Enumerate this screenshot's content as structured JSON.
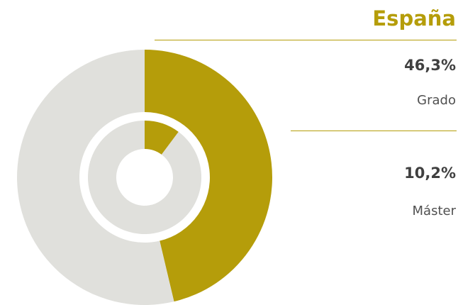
{
  "title": "España",
  "colors": {
    "accent": "#b59d0a",
    "remainder": "#e0e0dc",
    "value_text": "#404040",
    "label_text": "#505050"
  },
  "stats": [
    {
      "value": "46,3%",
      "label": "Grado"
    },
    {
      "value": "10,2%",
      "label": "Máster"
    }
  ],
  "chart_data": {
    "type": "pie",
    "variant": "nested-donut",
    "title": "España",
    "series": [
      {
        "name": "Grado",
        "ring": "outer",
        "value": 46.3,
        "remainder": 53.7
      },
      {
        "name": "Máster",
        "ring": "inner",
        "value": 10.2,
        "remainder": 89.8
      }
    ],
    "unit": "%"
  }
}
